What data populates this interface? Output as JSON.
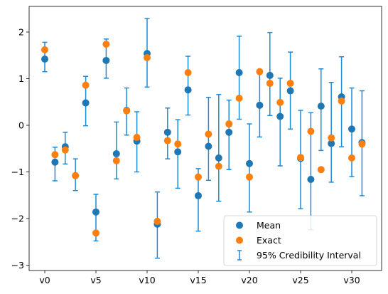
{
  "chart_data": {
    "type": "scatter",
    "title": "",
    "xlabel": "",
    "ylabel": "",
    "ylim": [
      -3.1,
      2.5
    ],
    "grid": false,
    "legend_placement": "lower-right",
    "x_ticks": [
      "v0",
      "v5",
      "v10",
      "v15",
      "v20",
      "v25",
      "v30"
    ],
    "x_tick_positions": [
      0,
      5,
      10,
      15,
      20,
      25,
      30
    ],
    "y_ticks": [
      2,
      1,
      0,
      -1,
      -2,
      -3
    ],
    "y_tick_labels": [
      "2",
      "1",
      "0",
      "−1",
      "−2",
      "−3"
    ],
    "variables": [
      "v0",
      "v1",
      "v2",
      "v3",
      "v4",
      "v5",
      "v6",
      "v7",
      "v8",
      "v9",
      "v10",
      "v11",
      "v12",
      "v13",
      "v14",
      "v15",
      "v16",
      "v17",
      "v18",
      "v19",
      "v20",
      "v21",
      "v22",
      "v23",
      "v24",
      "v25",
      "v26",
      "v27",
      "v28",
      "v29",
      "v30",
      "v31"
    ],
    "series": [
      {
        "name": "Mean",
        "color": "#1f77b4",
        "values": [
          1.42,
          -0.79,
          -0.46,
          -1.08,
          0.48,
          -1.86,
          1.39,
          -0.61,
          0.32,
          -0.34,
          1.54,
          -2.12,
          -0.15,
          -0.57,
          0.76,
          -1.51,
          -0.45,
          -0.7,
          -0.15,
          1.13,
          -0.82,
          0.43,
          1.07,
          0.19,
          0.74,
          -0.71,
          -1.16,
          0.41,
          -0.39,
          0.61,
          -0.08,
          -0.37
        ]
      },
      {
        "name": "Exact",
        "color": "#ff7f0e",
        "values": [
          1.62,
          -0.63,
          -0.53,
          -1.08,
          0.86,
          -2.31,
          1.74,
          -0.76,
          0.31,
          -0.26,
          1.45,
          -2.06,
          -0.33,
          -0.4,
          1.13,
          -1.11,
          -0.19,
          -0.88,
          0.03,
          0.58,
          -1.11,
          1.15,
          0.9,
          0.49,
          0.9,
          -0.69,
          -0.13,
          -0.95,
          -0.27,
          0.52,
          -0.7,
          -0.4
        ]
      }
    ],
    "error_bars": {
      "name": "95% Credibility Interval",
      "color": "#1f8ad8",
      "lower": [
        1.15,
        -1.19,
        -0.83,
        -1.4,
        -0.01,
        -2.48,
        1.01,
        -1.15,
        -0.21,
        -1.0,
        0.82,
        -2.85,
        -0.72,
        -1.35,
        0.22,
        -2.27,
        -1.18,
        -1.63,
        -0.95,
        0.13,
        -1.86,
        -0.25,
        0.21,
        -0.87,
        -0.08,
        -1.79,
        -2.24,
        -0.54,
        -1.22,
        -0.46,
        -1.1,
        -1.51
      ],
      "upper": [
        1.78,
        -0.47,
        -0.15,
        -0.72,
        1.05,
        -1.48,
        1.85,
        0.07,
        0.8,
        0.29,
        2.29,
        -1.43,
        0.37,
        0.12,
        1.48,
        -0.93,
        0.6,
        0.66,
        0.54,
        1.91,
        0.03,
        1.17,
        1.99,
        1.01,
        1.57,
        0.32,
        0.27,
        1.21,
        0.92,
        1.47,
        0.8,
        0.74
      ]
    }
  }
}
